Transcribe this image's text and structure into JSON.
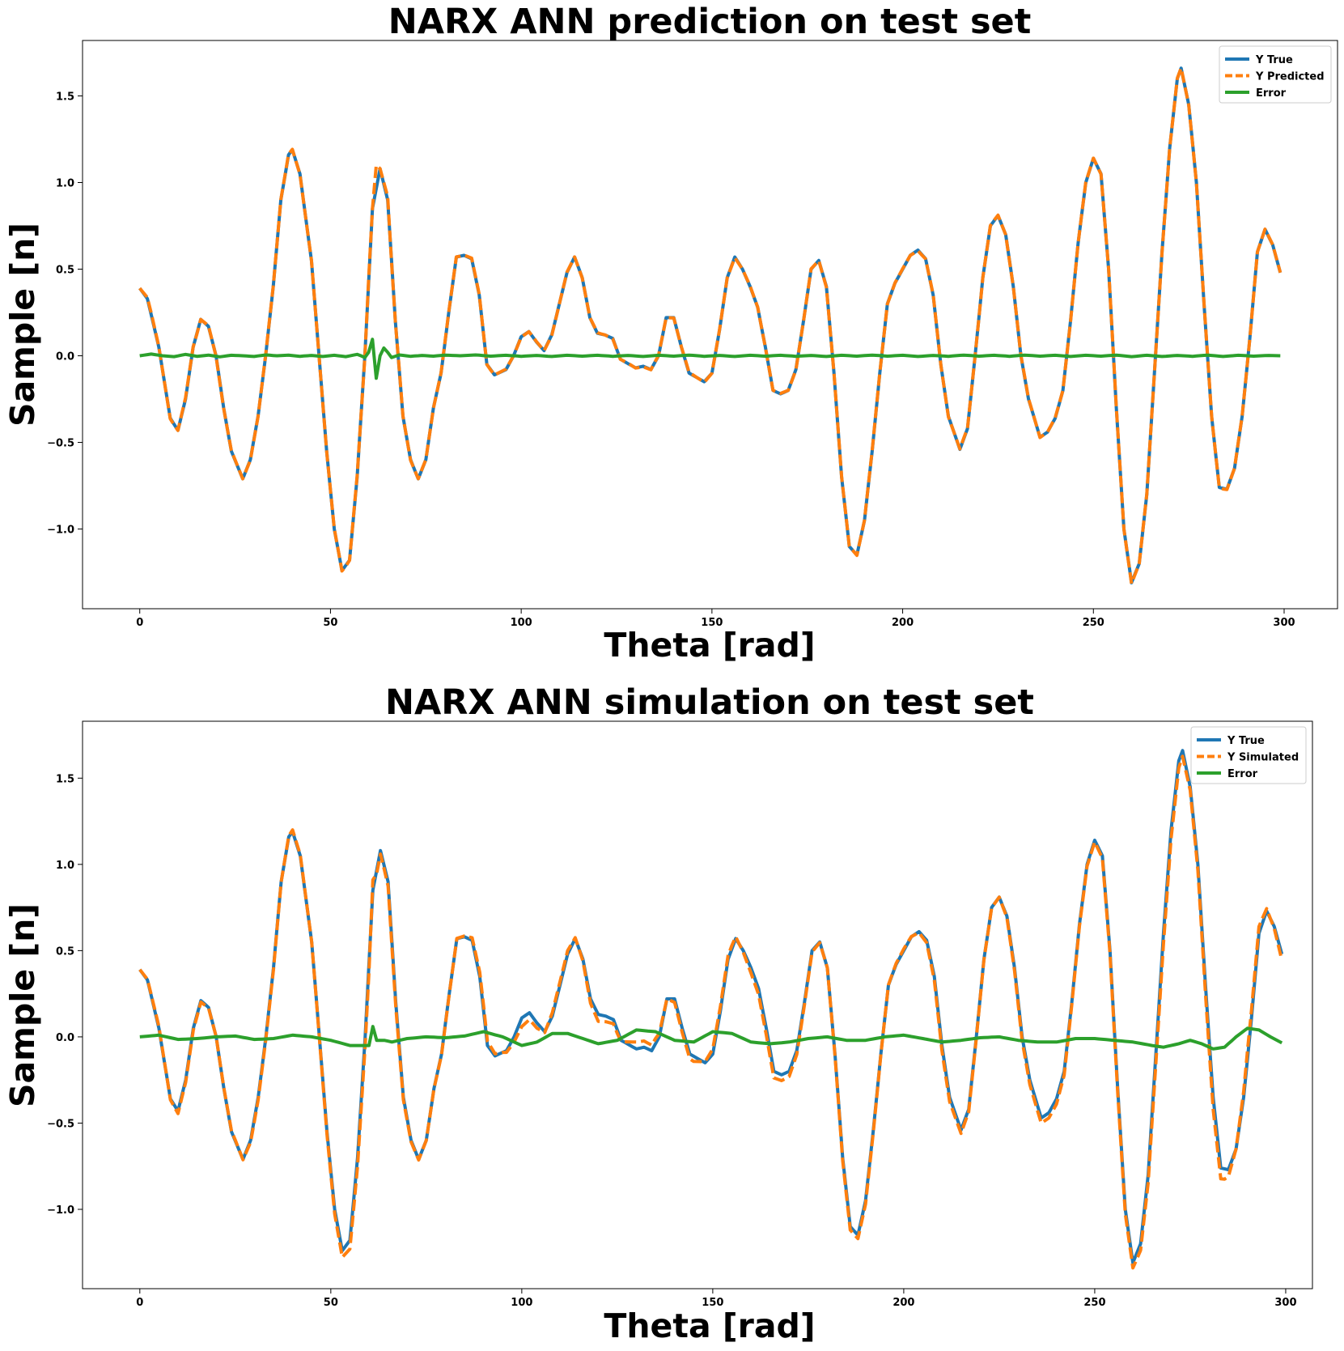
{
  "colors": {
    "true": "#1f77b4",
    "pred": "#ff7f0e",
    "error": "#2ca02c"
  },
  "chart_data": [
    {
      "type": "line",
      "title": "NARX ANN prediction on test set",
      "xlabel": "Theta [rad]",
      "ylabel": "Sample [n]",
      "xlim": [
        -15,
        314
      ],
      "ylim": [
        -1.46,
        1.82
      ],
      "xticks": [
        0,
        50,
        100,
        150,
        200,
        250,
        300
      ],
      "yticks": [
        -1.0,
        -0.5,
        0.0,
        0.5,
        1.0,
        1.5
      ],
      "legend_position": "top-right",
      "grid": false,
      "x_start": 0,
      "x_end": 299,
      "y_knots": [
        [
          0,
          0.39
        ],
        [
          2,
          0.33
        ],
        [
          5,
          0.05
        ],
        [
          8,
          -0.36
        ],
        [
          10,
          -0.43
        ],
        [
          12,
          -0.25
        ],
        [
          14,
          0.05
        ],
        [
          16,
          0.21
        ],
        [
          18,
          0.17
        ],
        [
          20,
          0.0
        ],
        [
          22,
          -0.3
        ],
        [
          24,
          -0.55
        ],
        [
          27,
          -0.71
        ],
        [
          29,
          -0.6
        ],
        [
          31,
          -0.35
        ],
        [
          33,
          0.0
        ],
        [
          35,
          0.4
        ],
        [
          37,
          0.9
        ],
        [
          39,
          1.16
        ],
        [
          40,
          1.19
        ],
        [
          42,
          1.05
        ],
        [
          45,
          0.55
        ],
        [
          47,
          0.0
        ],
        [
          49,
          -0.55
        ],
        [
          51,
          -1.0
        ],
        [
          53,
          -1.24
        ],
        [
          55,
          -1.18
        ],
        [
          57,
          -0.7
        ],
        [
          59,
          0.0
        ],
        [
          61,
          0.85
        ],
        [
          63,
          1.08
        ],
        [
          65,
          0.9
        ],
        [
          67,
          0.2
        ],
        [
          69,
          -0.35
        ],
        [
          71,
          -0.6
        ],
        [
          73,
          -0.71
        ],
        [
          75,
          -0.6
        ],
        [
          77,
          -0.3
        ],
        [
          79,
          -0.1
        ],
        [
          81,
          0.25
        ],
        [
          83,
          0.57
        ],
        [
          85,
          0.58
        ],
        [
          87,
          0.56
        ],
        [
          89,
          0.35
        ],
        [
          91,
          -0.05
        ],
        [
          93,
          -0.11
        ],
        [
          96,
          -0.08
        ],
        [
          98,
          0.0
        ],
        [
          100,
          0.11
        ],
        [
          102,
          0.14
        ],
        [
          104,
          0.08
        ],
        [
          106,
          0.03
        ],
        [
          108,
          0.12
        ],
        [
          110,
          0.3
        ],
        [
          112,
          0.48
        ],
        [
          114,
          0.57
        ],
        [
          116,
          0.45
        ],
        [
          118,
          0.22
        ],
        [
          120,
          0.13
        ],
        [
          122,
          0.12
        ],
        [
          124,
          0.1
        ],
        [
          126,
          -0.02
        ],
        [
          130,
          -0.07
        ],
        [
          132,
          -0.06
        ],
        [
          134,
          -0.08
        ],
        [
          136,
          0.0
        ],
        [
          138,
          0.22
        ],
        [
          140,
          0.22
        ],
        [
          142,
          0.05
        ],
        [
          144,
          -0.1
        ],
        [
          148,
          -0.15
        ],
        [
          150,
          -0.1
        ],
        [
          152,
          0.15
        ],
        [
          154,
          0.45
        ],
        [
          156,
          0.57
        ],
        [
          158,
          0.5
        ],
        [
          160,
          0.4
        ],
        [
          162,
          0.28
        ],
        [
          164,
          0.05
        ],
        [
          166,
          -0.2
        ],
        [
          168,
          -0.22
        ],
        [
          170,
          -0.2
        ],
        [
          172,
          -0.08
        ],
        [
          174,
          0.2
        ],
        [
          176,
          0.5
        ],
        [
          178,
          0.55
        ],
        [
          180,
          0.4
        ],
        [
          182,
          -0.1
        ],
        [
          184,
          -0.7
        ],
        [
          186,
          -1.1
        ],
        [
          188,
          -1.15
        ],
        [
          190,
          -0.95
        ],
        [
          192,
          -0.55
        ],
        [
          194,
          -0.1
        ],
        [
          196,
          0.3
        ],
        [
          198,
          0.42
        ],
        [
          200,
          0.5
        ],
        [
          202,
          0.58
        ],
        [
          204,
          0.61
        ],
        [
          206,
          0.56
        ],
        [
          208,
          0.35
        ],
        [
          210,
          -0.05
        ],
        [
          212,
          -0.35
        ],
        [
          215,
          -0.54
        ],
        [
          217,
          -0.42
        ],
        [
          219,
          0.0
        ],
        [
          221,
          0.45
        ],
        [
          223,
          0.75
        ],
        [
          225,
          0.81
        ],
        [
          227,
          0.7
        ],
        [
          229,
          0.4
        ],
        [
          231,
          0.0
        ],
        [
          233,
          -0.25
        ],
        [
          236,
          -0.47
        ],
        [
          238,
          -0.44
        ],
        [
          240,
          -0.36
        ],
        [
          242,
          -0.2
        ],
        [
          244,
          0.2
        ],
        [
          246,
          0.65
        ],
        [
          248,
          1.0
        ],
        [
          250,
          1.14
        ],
        [
          252,
          1.05
        ],
        [
          254,
          0.5
        ],
        [
          256,
          -0.3
        ],
        [
          258,
          -1.0
        ],
        [
          260,
          -1.31
        ],
        [
          262,
          -1.2
        ],
        [
          264,
          -0.8
        ],
        [
          266,
          -0.1
        ],
        [
          268,
          0.6
        ],
        [
          270,
          1.2
        ],
        [
          272,
          1.6
        ],
        [
          273,
          1.66
        ],
        [
          275,
          1.45
        ],
        [
          277,
          1.0
        ],
        [
          279,
          0.3
        ],
        [
          281,
          -0.35
        ],
        [
          283,
          -0.76
        ],
        [
          285,
          -0.77
        ],
        [
          287,
          -0.65
        ],
        [
          289,
          -0.35
        ],
        [
          291,
          0.1
        ],
        [
          293,
          0.6
        ],
        [
          295,
          0.73
        ],
        [
          297,
          0.64
        ],
        [
          299,
          0.48
        ]
      ],
      "err_knots": [
        [
          0,
          0.0
        ],
        [
          3,
          0.01
        ],
        [
          6,
          0.0
        ],
        [
          9,
          -0.005
        ],
        [
          12,
          0.008
        ],
        [
          15,
          -0.003
        ],
        [
          18,
          0.004
        ],
        [
          21,
          -0.006
        ],
        [
          24,
          0.003
        ],
        [
          27,
          0.0
        ],
        [
          30,
          -0.004
        ],
        [
          33,
          0.005
        ],
        [
          36,
          0.0
        ],
        [
          39,
          0.004
        ],
        [
          42,
          -0.003
        ],
        [
          45,
          0.002
        ],
        [
          48,
          -0.004
        ],
        [
          51,
          0.003
        ],
        [
          54,
          -0.005
        ],
        [
          57,
          0.008
        ],
        [
          58,
          0.0
        ],
        [
          59,
          -0.01
        ],
        [
          60,
          0.02
        ],
        [
          61,
          0.095
        ],
        [
          62,
          -0.13
        ],
        [
          63,
          0.0
        ],
        [
          64,
          0.045
        ],
        [
          65,
          0.02
        ],
        [
          66,
          -0.01
        ],
        [
          68,
          0.005
        ],
        [
          71,
          -0.003
        ],
        [
          74,
          0.002
        ],
        [
          77,
          -0.002
        ],
        [
          80,
          0.004
        ],
        [
          84,
          0.0
        ],
        [
          88,
          0.005
        ],
        [
          92,
          -0.002
        ],
        [
          96,
          0.003
        ],
        [
          100,
          -0.003
        ],
        [
          104,
          0.002
        ],
        [
          108,
          -0.004
        ],
        [
          112,
          0.003
        ],
        [
          116,
          -0.002
        ],
        [
          120,
          0.003
        ],
        [
          124,
          -0.003
        ],
        [
          128,
          0.002
        ],
        [
          132,
          -0.004
        ],
        [
          136,
          0.003
        ],
        [
          140,
          -0.002
        ],
        [
          144,
          0.004
        ],
        [
          148,
          -0.003
        ],
        [
          152,
          0.002
        ],
        [
          156,
          -0.004
        ],
        [
          160,
          0.003
        ],
        [
          164,
          -0.002
        ],
        [
          168,
          0.003
        ],
        [
          172,
          -0.003
        ],
        [
          176,
          0.002
        ],
        [
          180,
          -0.004
        ],
        [
          184,
          0.003
        ],
        [
          188,
          -0.002
        ],
        [
          192,
          0.004
        ],
        [
          196,
          -0.002
        ],
        [
          200,
          0.003
        ],
        [
          204,
          -0.004
        ],
        [
          208,
          0.002
        ],
        [
          212,
          -0.003
        ],
        [
          216,
          0.004
        ],
        [
          220,
          -0.002
        ],
        [
          224,
          0.003
        ],
        [
          228,
          -0.003
        ],
        [
          232,
          0.004
        ],
        [
          236,
          -0.002
        ],
        [
          240,
          0.003
        ],
        [
          244,
          -0.004
        ],
        [
          248,
          0.003
        ],
        [
          252,
          -0.002
        ],
        [
          256,
          0.004
        ],
        [
          260,
          -0.005
        ],
        [
          264,
          0.003
        ],
        [
          268,
          -0.004
        ],
        [
          272,
          0.002
        ],
        [
          276,
          -0.003
        ],
        [
          280,
          0.004
        ],
        [
          284,
          -0.004
        ],
        [
          288,
          0.003
        ],
        [
          292,
          -0.002
        ],
        [
          296,
          0.002
        ],
        [
          299,
          0.0
        ]
      ],
      "pred_knots": [
        [
          61,
          0.85
        ],
        [
          62,
          1.1
        ],
        [
          63,
          1.08
        ],
        [
          64,
          1.0
        ]
      ],
      "legend": [
        "Y True",
        "Y Predicted",
        "Error"
      ]
    },
    {
      "type": "line",
      "title": "NARX ANN simulation on test set",
      "xlabel": "Theta [rad]",
      "ylabel": "Sample [n]",
      "xlim": [
        -15,
        307
      ],
      "ylim": [
        -1.46,
        1.83
      ],
      "xticks": [
        0,
        50,
        100,
        150,
        200,
        250,
        300
      ],
      "yticks": [
        -1.0,
        -0.5,
        0.0,
        0.5,
        1.0,
        1.5
      ],
      "legend_position": "top-right",
      "grid": false,
      "x_start": 0,
      "x_end": 299,
      "err_knots": [
        [
          0,
          0.0
        ],
        [
          5,
          0.01
        ],
        [
          10,
          -0.015
        ],
        [
          15,
          -0.01
        ],
        [
          20,
          0.0
        ],
        [
          25,
          0.005
        ],
        [
          30,
          -0.015
        ],
        [
          35,
          -0.01
        ],
        [
          40,
          0.01
        ],
        [
          45,
          0.0
        ],
        [
          50,
          -0.02
        ],
        [
          55,
          -0.05
        ],
        [
          58,
          -0.05
        ],
        [
          60,
          -0.05
        ],
        [
          61,
          0.06
        ],
        [
          62,
          -0.02
        ],
        [
          64,
          -0.02
        ],
        [
          66,
          -0.03
        ],
        [
          70,
          -0.01
        ],
        [
          75,
          0.0
        ],
        [
          80,
          -0.005
        ],
        [
          85,
          0.005
        ],
        [
          90,
          0.03
        ],
        [
          95,
          0.0
        ],
        [
          100,
          -0.05
        ],
        [
          104,
          -0.03
        ],
        [
          108,
          0.02
        ],
        [
          112,
          0.02
        ],
        [
          116,
          -0.01
        ],
        [
          120,
          -0.04
        ],
        [
          125,
          -0.02
        ],
        [
          130,
          0.04
        ],
        [
          135,
          0.03
        ],
        [
          140,
          -0.02
        ],
        [
          145,
          -0.03
        ],
        [
          150,
          0.03
        ],
        [
          155,
          0.02
        ],
        [
          160,
          -0.03
        ],
        [
          165,
          -0.04
        ],
        [
          170,
          -0.03
        ],
        [
          175,
          -0.01
        ],
        [
          180,
          0.0
        ],
        [
          185,
          -0.02
        ],
        [
          190,
          -0.02
        ],
        [
          195,
          0.0
        ],
        [
          200,
          0.01
        ],
        [
          205,
          -0.01
        ],
        [
          210,
          -0.03
        ],
        [
          215,
          -0.02
        ],
        [
          220,
          -0.005
        ],
        [
          225,
          0.0
        ],
        [
          230,
          -0.02
        ],
        [
          235,
          -0.03
        ],
        [
          240,
          -0.03
        ],
        [
          245,
          -0.01
        ],
        [
          250,
          -0.01
        ],
        [
          255,
          -0.02
        ],
        [
          260,
          -0.03
        ],
        [
          265,
          -0.05
        ],
        [
          268,
          -0.06
        ],
        [
          270,
          -0.05
        ],
        [
          272,
          -0.04
        ],
        [
          275,
          -0.02
        ],
        [
          278,
          -0.04
        ],
        [
          281,
          -0.07
        ],
        [
          284,
          -0.06
        ],
        [
          287,
          0.0
        ],
        [
          290,
          0.05
        ],
        [
          293,
          0.04
        ],
        [
          296,
          0.0
        ],
        [
          299,
          -0.035
        ]
      ],
      "legend": [
        "Y True",
        "Y Simulated",
        "Error"
      ]
    }
  ]
}
